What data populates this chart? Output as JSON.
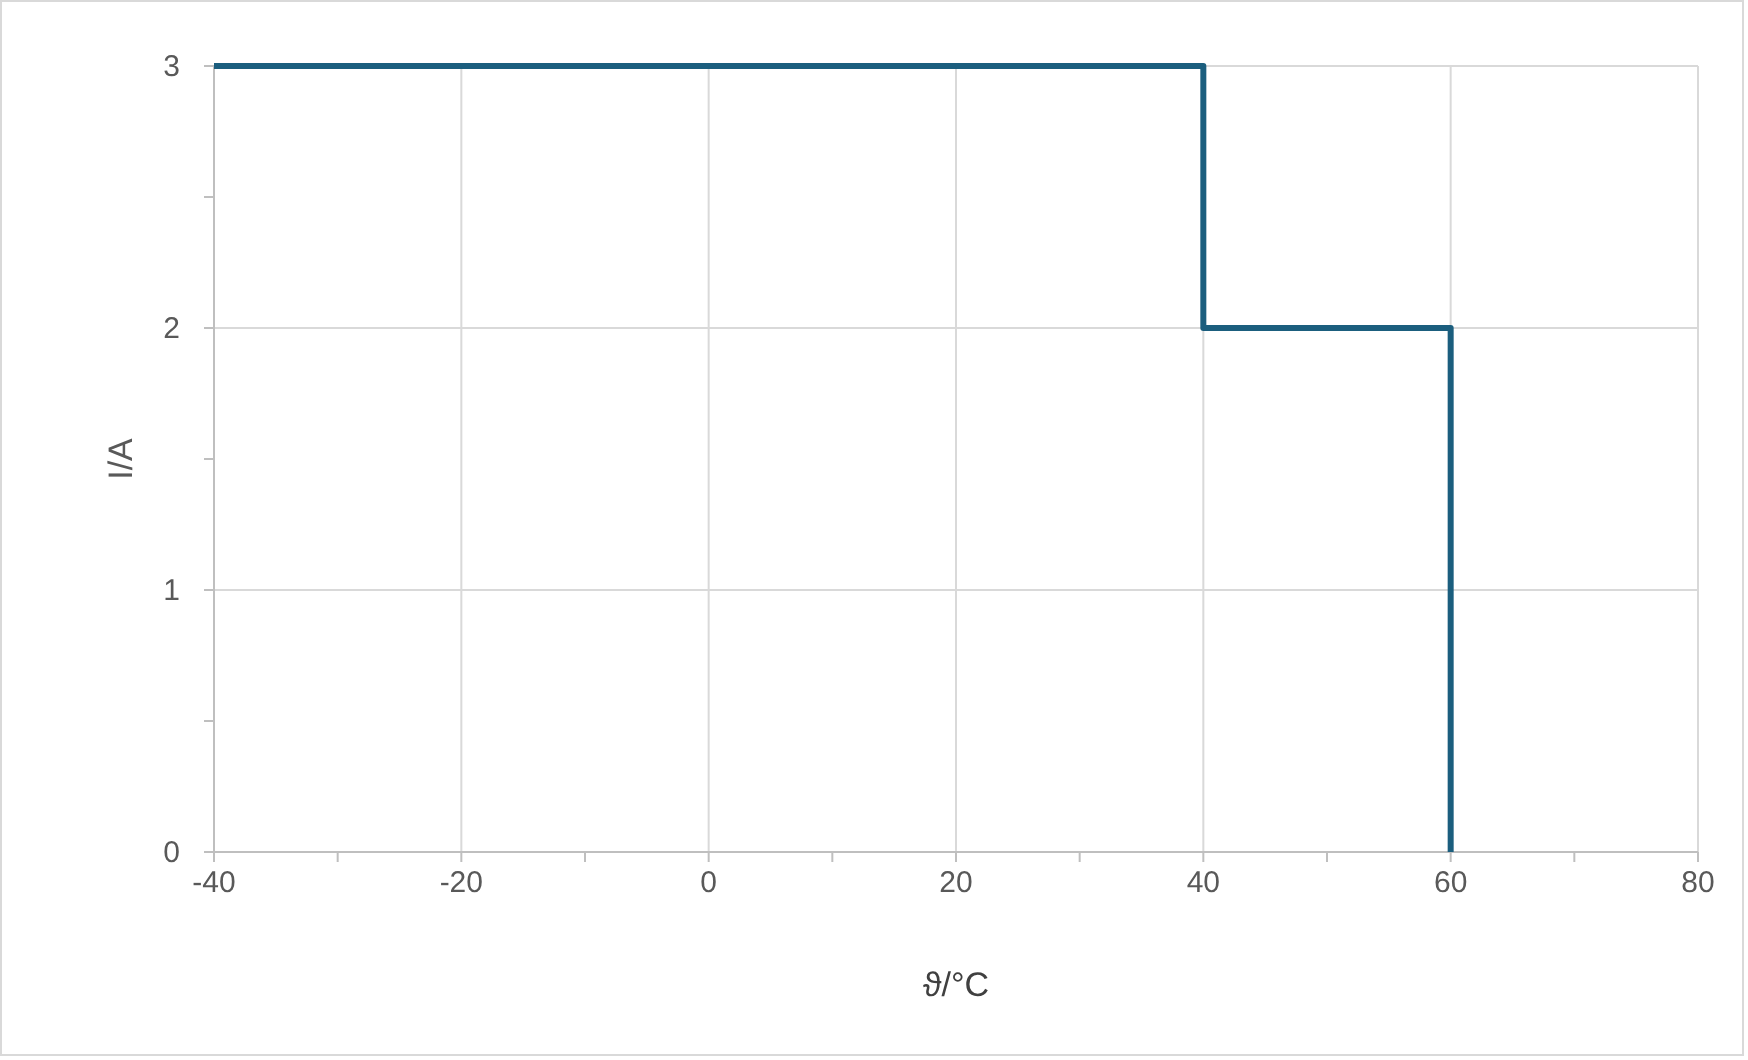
{
  "chart_data": {
    "type": "line",
    "xlabel": "ϑ/°C",
    "ylabel": "I/A",
    "x": [
      -40,
      40,
      40,
      60,
      60
    ],
    "series": [
      {
        "color": "#1b5e7e",
        "values": [
          3,
          3,
          2,
          2,
          0
        ]
      }
    ],
    "xlim": [
      -40,
      80
    ],
    "xticks": [
      -40,
      {
        "value": -30,
        "label": null
      },
      -20,
      {
        "value": -10,
        "label": null
      },
      0,
      {
        "value": 10,
        "label": null
      },
      20,
      {
        "value": 30,
        "label": null
      },
      40,
      {
        "value": 50,
        "label": null
      },
      60,
      {
        "value": 70,
        "label": null
      },
      80
    ],
    "ylim": [
      0,
      3
    ],
    "yticks": [
      0,
      {
        "value": 0.5,
        "label": null
      },
      1,
      {
        "value": 1.5,
        "label": null
      },
      2,
      {
        "value": 2.5,
        "label": null
      },
      3
    ],
    "grid": true,
    "marker": "none",
    "line_style": "solid"
  }
}
